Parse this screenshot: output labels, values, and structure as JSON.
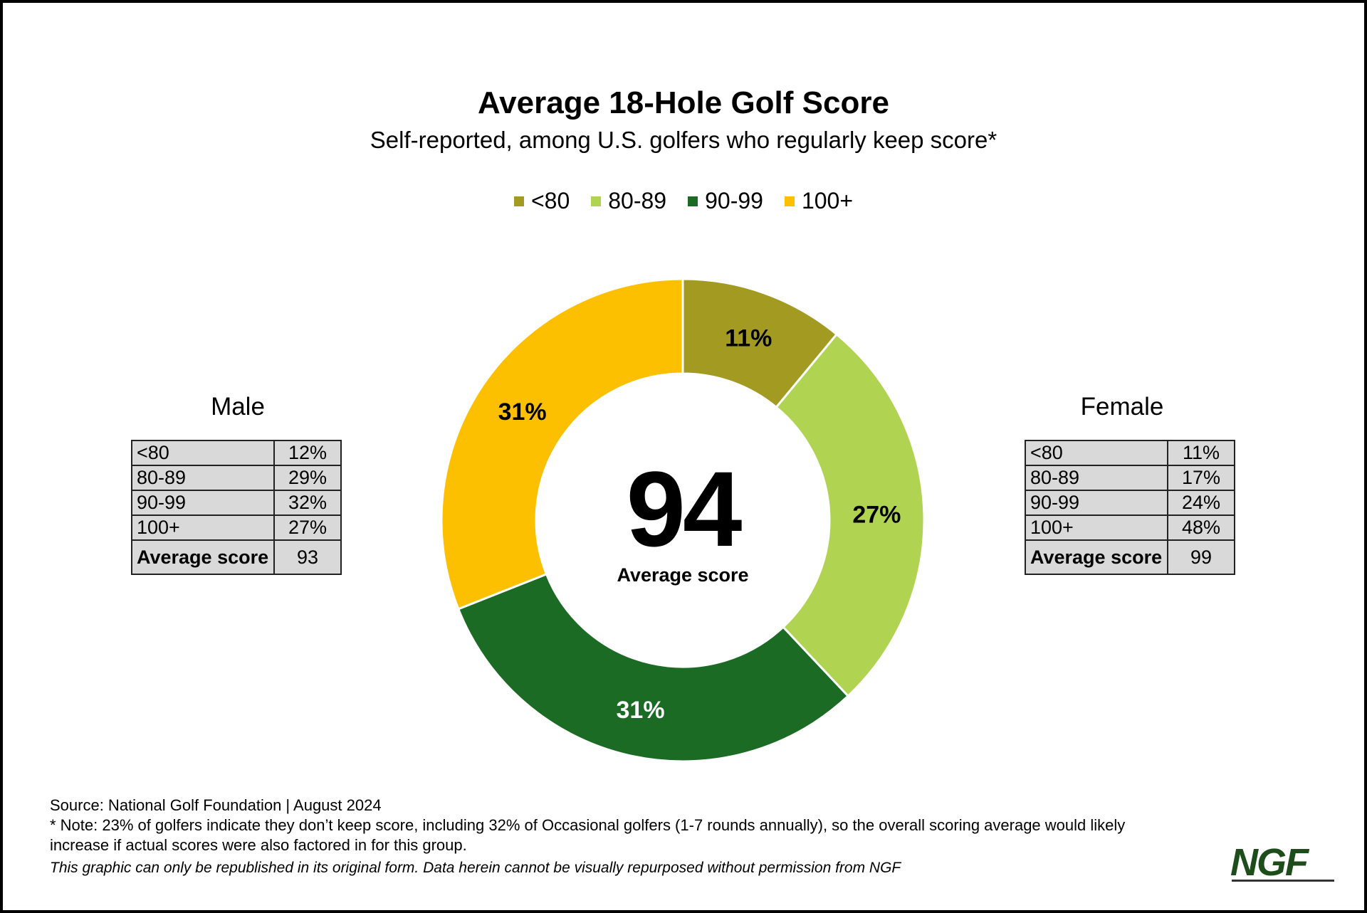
{
  "chart_data": {
    "type": "pie",
    "variant": "donut",
    "title": "Average 18-Hole Golf Score",
    "subtitle": "Self-reported, among U.S. golfers who regularly keep score*",
    "legend_position": "top",
    "categories": [
      "<80",
      "80-89",
      "90-99",
      "100+"
    ],
    "values": [
      11,
      27,
      31,
      31
    ],
    "labels": [
      "11%",
      "27%",
      "31%",
      "31%"
    ],
    "colors": [
      "#a39a22",
      "#b0d452",
      "#1b6b25",
      "#fdc000"
    ],
    "label_colors": [
      "#000000",
      "#000000",
      "#ffffff",
      "#000000"
    ],
    "center_value": "94",
    "center_label": "Average score"
  },
  "male": {
    "title": "Male",
    "rows": [
      [
        "<80",
        "12%"
      ],
      [
        "80-89",
        "29%"
      ],
      [
        "90-99",
        "32%"
      ],
      [
        "100+",
        "27%"
      ]
    ],
    "average_label": "Average score",
    "average_value": "93"
  },
  "female": {
    "title": "Female",
    "rows": [
      [
        "<80",
        "11%"
      ],
      [
        "80-89",
        "17%"
      ],
      [
        "90-99",
        "24%"
      ],
      [
        "100+",
        "48%"
      ]
    ],
    "average_label": "Average score",
    "average_value": "99"
  },
  "footer": {
    "source": "Source: National Golf Foundation | August 2024",
    "note": "* Note: 23% of golfers indicate they don’t keep score, including 32% of Occasional golfers (1-7 rounds annually), so the overall scoring average would likely increase if actual scores were also factored in for this group.",
    "disclaimer": "This graphic can only be republished in its original form. Data herein cannot be visually repurposed without permission from NGF"
  },
  "logo": {
    "text": "NGF",
    "color": "#1d4d1a"
  }
}
